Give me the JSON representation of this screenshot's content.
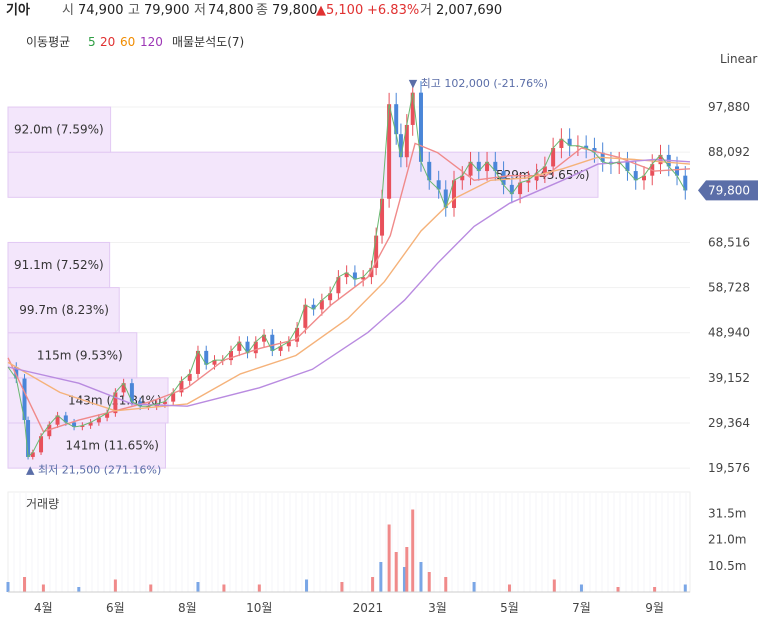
{
  "header": {
    "name": "기아",
    "open_label": "시",
    "open": "74,900",
    "high_label": "고",
    "high": "79,900",
    "low_label": "저",
    "low": "74,800",
    "close_label": "종",
    "close": "79,800",
    "change": "▲5,100",
    "change_pct": "+6.83%",
    "volume_label": "거",
    "volume": "2,007,690"
  },
  "indicators": {
    "ma_label": "이동평균",
    "ma_periods": [
      {
        "label": "5",
        "color": "#2f9e44"
      },
      {
        "label": "20",
        "color": "#e03131"
      },
      {
        "label": "60",
        "color": "#f08c00"
      },
      {
        "label": "120",
        "color": "#9c36b5"
      }
    ],
    "vp_label": "매물분석도(7)"
  },
  "scale_label": "Linear",
  "current_price_badge": "79,800",
  "volume_panel_label": "거래량",
  "chart_data": {
    "type": "candlestick",
    "price_axis": {
      "ticks": [
        19576,
        29364,
        39152,
        48940,
        58728,
        68516,
        88092,
        97880
      ],
      "tick_labels": [
        "19,576",
        "29,364",
        "39,152",
        "48,940",
        "58,728",
        "68,516",
        "88,092",
        "97,880"
      ],
      "range": [
        17000,
        107000
      ]
    },
    "volume_axis": {
      "ticks": [
        10.5,
        21.0,
        31.5
      ],
      "tick_labels": [
        "10.5m",
        "21.0m",
        "31.5m"
      ],
      "range": [
        0,
        40
      ]
    },
    "x_axis": {
      "labels": [
        "4월",
        "6월",
        "8월",
        "10월",
        "2021",
        "3월",
        "5월",
        "7월",
        "9월"
      ],
      "label_dates": [
        "2020-04-01",
        "2020-06-01",
        "2020-08-01",
        "2020-10-01",
        "2021-01-01",
        "2021-03-01",
        "2021-05-01",
        "2021-07-01",
        "2021-09-01"
      ],
      "start": "2020-03-02",
      "end": "2021-10-01"
    },
    "price_series": [
      [
        "2020-03-02",
        41500
      ],
      [
        "2020-03-09",
        39000
      ],
      [
        "2020-03-16",
        30000
      ],
      [
        "2020-03-19",
        22000
      ],
      [
        "2020-03-23",
        23000
      ],
      [
        "2020-03-30",
        26500
      ],
      [
        "2020-04-06",
        29000
      ],
      [
        "2020-04-13",
        31000
      ],
      [
        "2020-04-20",
        29500
      ],
      [
        "2020-04-27",
        28500
      ],
      [
        "2020-05-04",
        28800
      ],
      [
        "2020-05-11",
        29500
      ],
      [
        "2020-05-18",
        30500
      ],
      [
        "2020-05-25",
        31500
      ],
      [
        "2020-06-01",
        36000
      ],
      [
        "2020-06-08",
        38000
      ],
      [
        "2020-06-15",
        34000
      ],
      [
        "2020-06-22",
        33000
      ],
      [
        "2020-06-29",
        33000
      ],
      [
        "2020-07-06",
        33500
      ],
      [
        "2020-07-13",
        34000
      ],
      [
        "2020-07-20",
        36000
      ],
      [
        "2020-07-27",
        38500
      ],
      [
        "2020-08-03",
        40000
      ],
      [
        "2020-08-10",
        45000
      ],
      [
        "2020-08-17",
        42000
      ],
      [
        "2020-08-24",
        43000
      ],
      [
        "2020-08-31",
        43000
      ],
      [
        "2020-09-07",
        45000
      ],
      [
        "2020-09-14",
        47000
      ],
      [
        "2020-09-21",
        44500
      ],
      [
        "2020-09-28",
        47000
      ],
      [
        "2020-10-05",
        48500
      ],
      [
        "2020-10-12",
        45000
      ],
      [
        "2020-10-19",
        46000
      ],
      [
        "2020-10-26",
        47000
      ],
      [
        "2020-11-02",
        50000
      ],
      [
        "2020-11-09",
        55000
      ],
      [
        "2020-11-16",
        54000
      ],
      [
        "2020-11-23",
        56000
      ],
      [
        "2020-11-30",
        57500
      ],
      [
        "2020-12-07",
        61000
      ],
      [
        "2020-12-14",
        62000
      ],
      [
        "2020-12-21",
        60500
      ],
      [
        "2020-12-28",
        61000
      ],
      [
        "2021-01-04",
        63000
      ],
      [
        "2021-01-08",
        70000
      ],
      [
        "2021-01-13",
        78000
      ],
      [
        "2021-01-19",
        98500
      ],
      [
        "2021-01-25",
        92000
      ],
      [
        "2021-01-29",
        87000
      ],
      [
        "2021-02-03",
        94000
      ],
      [
        "2021-02-08",
        101000
      ],
      [
        "2021-02-15",
        86000
      ],
      [
        "2021-02-22",
        82000
      ],
      [
        "2021-03-02",
        80000
      ],
      [
        "2021-03-08",
        76000
      ],
      [
        "2021-03-15",
        82000
      ],
      [
        "2021-03-22",
        83000
      ],
      [
        "2021-03-29",
        86000
      ],
      [
        "2021-04-05",
        84000
      ],
      [
        "2021-04-12",
        86000
      ],
      [
        "2021-04-19",
        84000
      ],
      [
        "2021-04-26",
        81000
      ],
      [
        "2021-05-03",
        79000
      ],
      [
        "2021-05-10",
        81500
      ],
      [
        "2021-05-17",
        82000
      ],
      [
        "2021-05-24",
        83500
      ],
      [
        "2021-05-31",
        85000
      ],
      [
        "2021-06-07",
        89000
      ],
      [
        "2021-06-14",
        91000
      ],
      [
        "2021-06-21",
        89500
      ],
      [
        "2021-06-28",
        89500
      ],
      [
        "2021-07-05",
        89000
      ],
      [
        "2021-07-12",
        88000
      ],
      [
        "2021-07-19",
        86000
      ],
      [
        "2021-07-26",
        85500
      ],
      [
        "2021-08-02",
        86000
      ],
      [
        "2021-08-09",
        84000
      ],
      [
        "2021-08-16",
        82000
      ],
      [
        "2021-08-23",
        83000
      ],
      [
        "2021-08-30",
        85500
      ],
      [
        "2021-09-06",
        87500
      ],
      [
        "2021-09-13",
        85000
      ],
      [
        "2021-09-20",
        83000
      ],
      [
        "2021-09-27",
        79800
      ]
    ],
    "moving_averages": [
      {
        "period": "20",
        "points": [
          [
            "2020-03-02",
            43500
          ],
          [
            "2020-04-01",
            27500
          ],
          [
            "2020-05-01",
            30000
          ],
          [
            "2020-06-01",
            32000
          ],
          [
            "2020-07-01",
            34000
          ],
          [
            "2020-08-01",
            37000
          ],
          [
            "2020-09-01",
            43000
          ],
          [
            "2020-10-01",
            45500
          ],
          [
            "2020-11-01",
            47500
          ],
          [
            "2020-12-01",
            55000
          ],
          [
            "2021-01-01",
            61000
          ],
          [
            "2021-01-20",
            70000
          ],
          [
            "2021-02-10",
            90000
          ],
          [
            "2021-03-01",
            88000
          ],
          [
            "2021-04-01",
            82000
          ],
          [
            "2021-05-01",
            83000
          ],
          [
            "2021-06-01",
            83000
          ],
          [
            "2021-07-01",
            89000
          ],
          [
            "2021-08-01",
            87000
          ],
          [
            "2021-09-01",
            84000
          ],
          [
            "2021-10-01",
            84500
          ]
        ]
      },
      {
        "period": "60",
        "points": [
          [
            "2020-03-02",
            42500
          ],
          [
            "2020-04-15",
            36000
          ],
          [
            "2020-06-01",
            32000
          ],
          [
            "2020-08-01",
            33500
          ],
          [
            "2020-09-15",
            40000
          ],
          [
            "2020-11-01",
            44000
          ],
          [
            "2020-12-15",
            52000
          ],
          [
            "2021-01-15",
            60000
          ],
          [
            "2021-02-15",
            71000
          ],
          [
            "2021-03-15",
            78000
          ],
          [
            "2021-04-15",
            82000
          ],
          [
            "2021-05-15",
            82500
          ],
          [
            "2021-06-15",
            84500
          ],
          [
            "2021-07-15",
            87000
          ],
          [
            "2021-08-15",
            86500
          ],
          [
            "2021-10-01",
            85500
          ]
        ]
      },
      {
        "period": "120",
        "points": [
          [
            "2020-03-02",
            41500
          ],
          [
            "2020-05-01",
            38000
          ],
          [
            "2020-06-15",
            33500
          ],
          [
            "2020-08-01",
            33000
          ],
          [
            "2020-10-01",
            37000
          ],
          [
            "2020-11-15",
            41000
          ],
          [
            "2021-01-01",
            49000
          ],
          [
            "2021-02-01",
            56000
          ],
          [
            "2021-03-01",
            64000
          ],
          [
            "2021-04-01",
            72000
          ],
          [
            "2021-05-01",
            77000
          ],
          [
            "2021-06-15",
            82000
          ],
          [
            "2021-07-15",
            85500
          ],
          [
            "2021-09-01",
            86500
          ],
          [
            "2021-10-01",
            86000
          ]
        ]
      }
    ],
    "volume_profile": [
      {
        "label": "141m (11.65%)",
        "price_low": 19576,
        "price_high": 29364,
        "pct": 11.65
      },
      {
        "label": "143m (11.84%)",
        "price_low": 29364,
        "price_high": 39152,
        "pct": 11.84
      },
      {
        "label": "115m (9.53%)",
        "price_low": 39152,
        "price_high": 48940,
        "pct": 9.53
      },
      {
        "label": "99.7m (8.23%)",
        "price_low": 48940,
        "price_high": 58728,
        "pct": 8.23
      },
      {
        "label": "91.1m (7.52%)",
        "price_low": 58728,
        "price_high": 68516,
        "pct": 7.52
      },
      {
        "label": "529m (43.65%)",
        "price_low": 78304,
        "price_high": 88092,
        "pct": 43.65
      },
      {
        "label": "92.0m (7.59%)",
        "price_low": 88092,
        "price_high": 97880,
        "pct": 7.59
      }
    ],
    "annotations": {
      "high": {
        "label": "최고 102,000 (-21.76%)",
        "date": "2021-02-08",
        "price": 102000
      },
      "low": {
        "label": "최저 21,500 (271.16%)",
        "date": "2020-03-19",
        "price": 21500
      }
    },
    "volume_bars": [
      [
        "2020-03-02",
        4
      ],
      [
        "2020-03-16",
        6
      ],
      [
        "2020-04-01",
        3
      ],
      [
        "2020-05-01",
        2
      ],
      [
        "2020-06-01",
        5
      ],
      [
        "2020-07-01",
        3
      ],
      [
        "2020-08-10",
        4
      ],
      [
        "2020-09-01",
        3
      ],
      [
        "2020-10-01",
        3
      ],
      [
        "2020-11-10",
        5
      ],
      [
        "2020-12-10",
        4
      ],
      [
        "2021-01-05",
        6
      ],
      [
        "2021-01-12",
        12
      ],
      [
        "2021-01-19",
        27
      ],
      [
        "2021-01-25",
        16
      ],
      [
        "2021-02-01",
        10
      ],
      [
        "2021-02-03",
        18
      ],
      [
        "2021-02-08",
        33
      ],
      [
        "2021-02-15",
        12
      ],
      [
        "2021-02-22",
        8
      ],
      [
        "2021-03-08",
        6
      ],
      [
        "2021-04-01",
        4
      ],
      [
        "2021-05-01",
        3
      ],
      [
        "2021-06-08",
        5
      ],
      [
        "2021-07-01",
        3
      ],
      [
        "2021-08-01",
        2
      ],
      [
        "2021-09-01",
        2
      ],
      [
        "2021-09-27",
        3
      ]
    ]
  }
}
